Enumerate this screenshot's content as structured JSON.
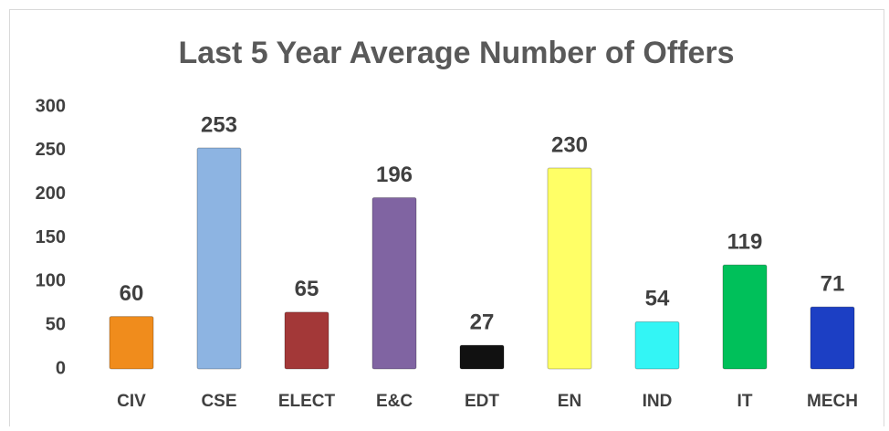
{
  "chart_data": {
    "type": "bar",
    "title": "Last 5 Year Average Number of Offers",
    "categories": [
      "CIV",
      "CSE",
      "ELECT",
      "E&C",
      "EDT",
      "EN",
      "IND",
      "IT",
      "MECH"
    ],
    "values": [
      60,
      253,
      65,
      196,
      27,
      230,
      54,
      119,
      71
    ],
    "colors": [
      "#f08c1c",
      "#8db4e2",
      "#a33838",
      "#8064a2",
      "#111111",
      "#ffff66",
      "#33f5f5",
      "#00c05a",
      "#1c3fc4"
    ],
    "ylim": [
      0,
      300
    ],
    "yticks": [
      0,
      50,
      100,
      150,
      200,
      250,
      300
    ],
    "grid": false
  }
}
